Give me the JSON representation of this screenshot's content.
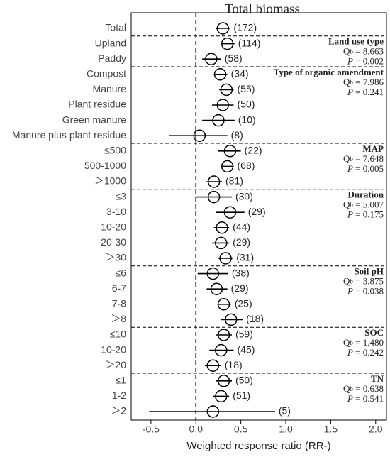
{
  "chart_data": {
    "type": "forest",
    "title": "Total biomass",
    "x_label": "Weighted response ratio (RR-)",
    "xlim": [
      -0.72,
      2.12
    ],
    "xticks": [
      -0.5,
      {
        "value": 0,
        "label": "0.0"
      },
      0.5,
      {
        "value": 1,
        "label": "1.0"
      },
      1.5,
      {
        "value": 2,
        "label": "2.0"
      }
    ],
    "reference_line": 0,
    "color": "#000000",
    "groups": [
      {
        "categories": [
          "Total"
        ],
        "values": [
          0.3
        ],
        "lower": [
          0.22
        ],
        "upper": [
          0.38
        ],
        "n_labels": [
          "(172)"
        ]
      },
      {
        "name": "Land use type",
        "qb": [
          "Q",
          "b",
          " = 8.663"
        ],
        "p": [
          "P",
          " = 0.002"
        ],
        "categories": [
          "Upland",
          "Paddy"
        ],
        "values": [
          0.35,
          0.17
        ],
        "lower": [
          0.28,
          0.07
        ],
        "upper": [
          0.43,
          0.28
        ],
        "n_labels": [
          "(114)",
          "(58)"
        ]
      },
      {
        "name": "Type of organic amendment",
        "qb": [
          "Q",
          "b",
          " = 7.986"
        ],
        "p": [
          "P",
          " = 0.241"
        ],
        "categories": [
          "Compost",
          "Manure",
          "Plant residue",
          "Green manure",
          "Manure plus plant residue"
        ],
        "values": [
          0.27,
          0.34,
          0.3,
          0.25,
          0.04
        ],
        "lower": [
          0.2,
          0.26,
          0.18,
          0.07,
          -0.3
        ],
        "upper": [
          0.35,
          0.42,
          0.42,
          0.43,
          0.35
        ],
        "n_labels": [
          "(34)",
          "(55)",
          "(50)",
          "(10)",
          "(8)"
        ]
      },
      {
        "name": "MAP",
        "qb": [
          "Q",
          "b",
          " = 7.648"
        ],
        "p": [
          "P",
          " = 0.005"
        ],
        "categories": [
          "≤500",
          "500-1000",
          "＞1000"
        ],
        "values": [
          0.38,
          0.35,
          0.2
        ],
        "lower": [
          0.25,
          0.28,
          0.12
        ],
        "upper": [
          0.5,
          0.42,
          0.29
        ],
        "n_labels": [
          "(22)",
          "(68)",
          "(81)"
        ]
      },
      {
        "name": "Duration",
        "qb": [
          "Q",
          "b",
          " = 5.007"
        ],
        "p": [
          "P",
          " = 0.175"
        ],
        "categories": [
          "≤3",
          "3-10",
          "10-20",
          "20-30",
          "＞30"
        ],
        "values": [
          0.2,
          0.38,
          0.29,
          0.28,
          0.33
        ],
        "lower": [
          0.0,
          0.22,
          0.2,
          0.18,
          0.25
        ],
        "upper": [
          0.4,
          0.54,
          0.37,
          0.37,
          0.41
        ],
        "n_labels": [
          "(30)",
          "(29)",
          "(44)",
          "(29)",
          "(31)"
        ]
      },
      {
        "name": "Soil pH",
        "qb": [
          "Q",
          "b",
          " = 3.875"
        ],
        "p": [
          "P",
          " = 0.038"
        ],
        "categories": [
          "≤6",
          "6-7",
          "7-8",
          "＞8"
        ],
        "values": [
          0.19,
          0.23,
          0.31,
          0.39
        ],
        "lower": [
          0.02,
          0.12,
          0.24,
          0.28
        ],
        "upper": [
          0.36,
          0.35,
          0.39,
          0.52
        ],
        "n_labels": [
          "(38)",
          "(29)",
          "(25)",
          "(18)"
        ]
      },
      {
        "name": "SOC",
        "qb": [
          "Q",
          "b",
          " = 1.480"
        ],
        "p": [
          "P",
          " = 0.242"
        ],
        "categories": [
          "≤10",
          "10-20",
          "＞20"
        ],
        "values": [
          0.31,
          0.28,
          0.19
        ],
        "lower": [
          0.22,
          0.15,
          0.1
        ],
        "upper": [
          0.4,
          0.42,
          0.28
        ],
        "n_labels": [
          "(59)",
          "(45)",
          "(18)"
        ]
      },
      {
        "name": "TN",
        "qb": [
          "Q",
          "b",
          " = 0.638"
        ],
        "p": [
          "P",
          " = 0.541"
        ],
        "categories": [
          "≤1",
          "1-2",
          "＞2"
        ],
        "values": [
          0.31,
          0.28,
          0.19
        ],
        "lower": [
          0.22,
          0.19,
          -0.52
        ],
        "upper": [
          0.4,
          0.37,
          0.88
        ],
        "n_labels": [
          "(50)",
          "(51)",
          "(5)"
        ]
      }
    ]
  }
}
